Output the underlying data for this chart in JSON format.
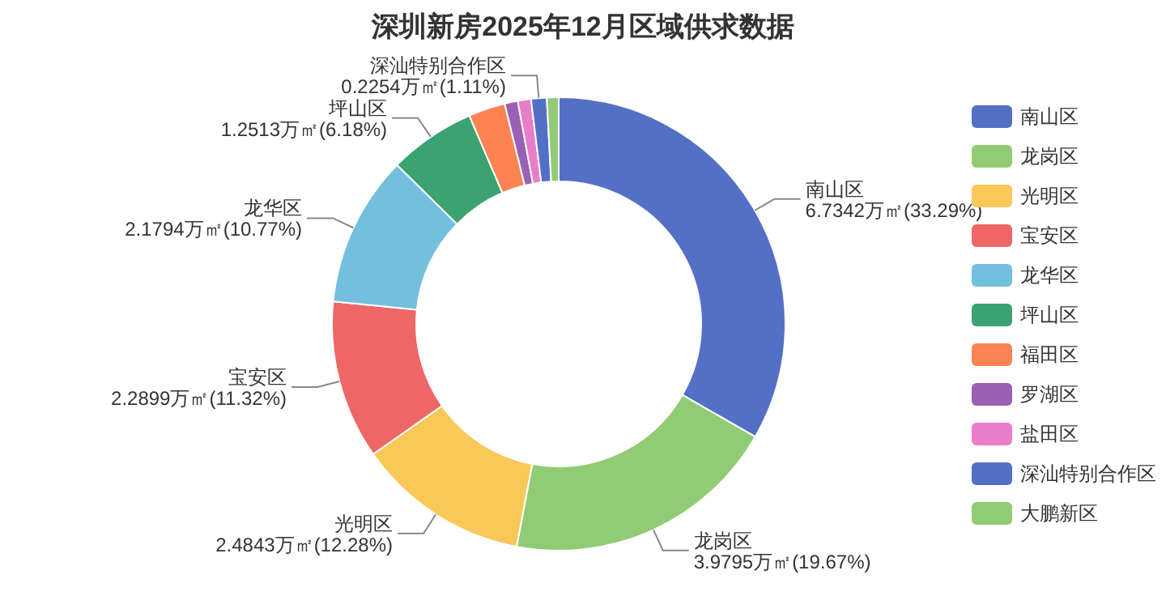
{
  "chart_data": {
    "type": "donut",
    "title": "深圳新房2025年12月区域供求数据",
    "categories": [
      "南山区",
      "龙岗区",
      "光明区",
      "宝安区",
      "龙华区",
      "坪山区",
      "福田区",
      "罗湖区",
      "盐田区",
      "深汕特别合作区",
      "大鹏新区"
    ],
    "values": [
      6.7342,
      3.9795,
      2.4843,
      2.2899,
      2.1794,
      1.2513,
      0.53,
      0.19,
      0.19,
      0.2254,
      0.17
    ],
    "colors": [
      "#5470c6",
      "#91cc75",
      "#fac858",
      "#ee6666",
      "#73c0de",
      "#3ba272",
      "#fc8452",
      "#9a60b4",
      "#ea7ccc",
      "#5470c6",
      "#91cc75"
    ],
    "value_labels": [
      "6.7342万㎡(33.29%)",
      "3.9795万㎡(19.67%)",
      "2.4843万㎡(12.28%)",
      "2.2899万㎡(11.32%)",
      "2.1794万㎡(10.77%)",
      "1.2513万㎡(6.18%)",
      null,
      null,
      null,
      "0.2254万㎡(1.11%)",
      null
    ],
    "legend": "right"
  }
}
